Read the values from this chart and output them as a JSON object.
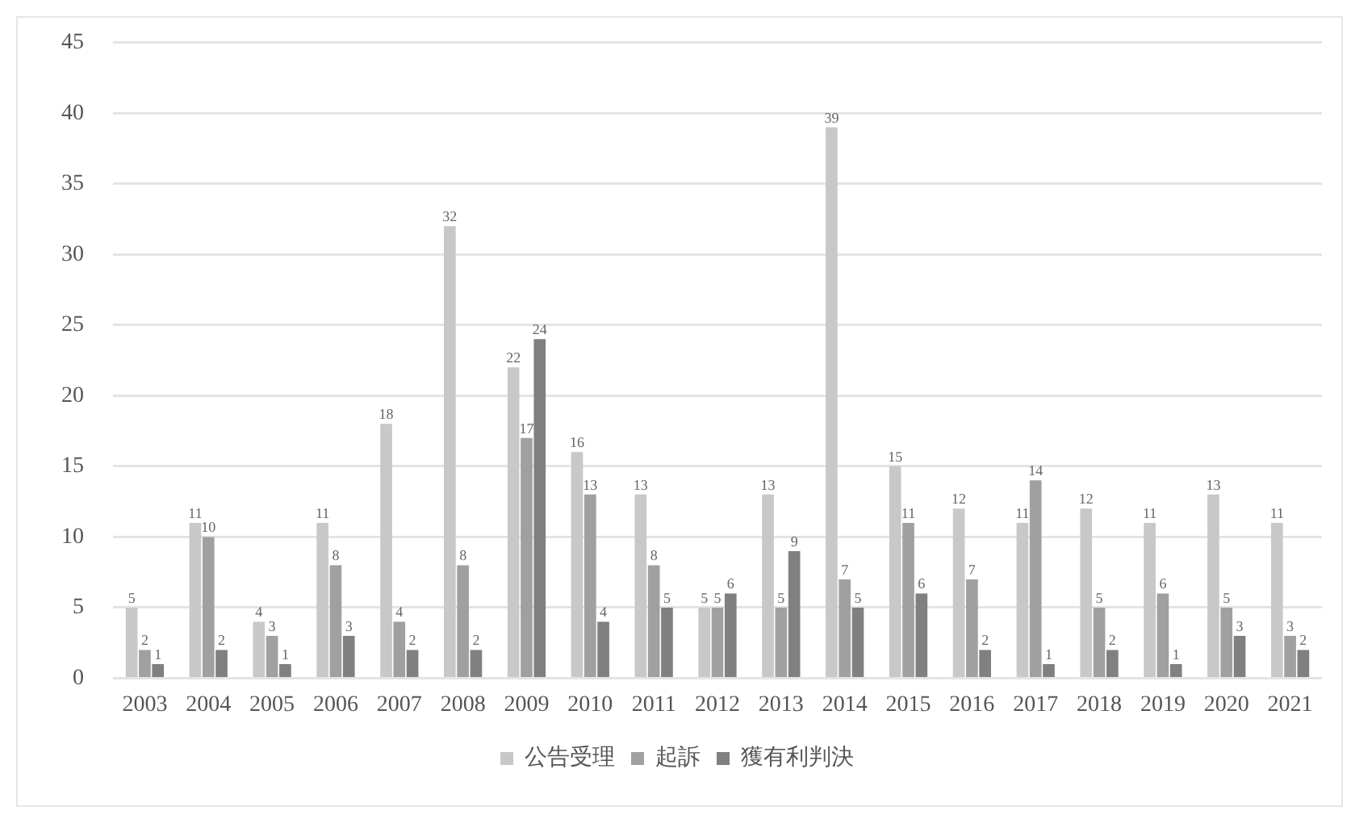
{
  "chart_data": {
    "type": "bar",
    "categories": [
      "2003",
      "2004",
      "2005",
      "2006",
      "2007",
      "2008",
      "2009",
      "2010",
      "2011",
      "2012",
      "2013",
      "2014",
      "2015",
      "2016",
      "2017",
      "2018",
      "2019",
      "2020",
      "2021"
    ],
    "series": [
      {
        "name": "公告受理",
        "color": "#c8c8c8",
        "values": [
          5,
          11,
          4,
          11,
          18,
          32,
          22,
          16,
          13,
          5,
          13,
          39,
          15,
          12,
          11,
          12,
          11,
          13,
          11
        ]
      },
      {
        "name": "起訴",
        "color": "#a0a0a0",
        "values": [
          2,
          10,
          3,
          8,
          4,
          8,
          17,
          13,
          8,
          5,
          5,
          7,
          11,
          7,
          14,
          5,
          6,
          5,
          3
        ]
      },
      {
        "name": "獲有利判決",
        "color": "#808080",
        "values": [
          1,
          2,
          1,
          3,
          2,
          2,
          24,
          4,
          5,
          6,
          9,
          5,
          6,
          2,
          1,
          2,
          1,
          3,
          2
        ]
      }
    ],
    "ylim": [
      0,
      45
    ],
    "yticks": [
      0,
      5,
      10,
      15,
      20,
      25,
      30,
      35,
      40,
      45
    ],
    "grid": "y",
    "legend": "bottom",
    "data_labels": true
  }
}
